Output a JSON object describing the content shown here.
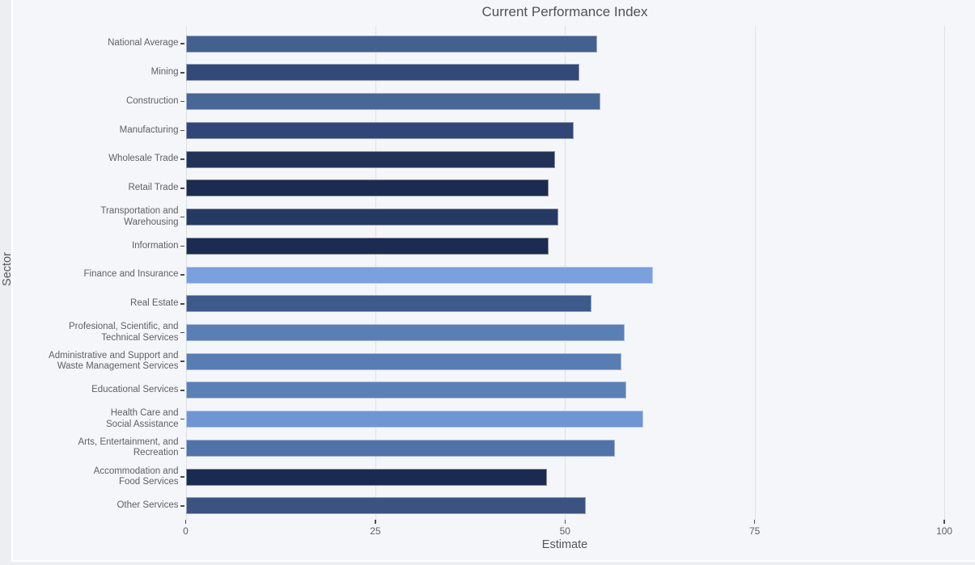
{
  "page": {
    "background": "#eceef1",
    "card_background": "#f5f6f9",
    "gridline_color": "#dce2e7",
    "tick_color": "#4a4f54",
    "label_color": "#5c6167",
    "title_color": "#4e5256"
  },
  "chart_data": {
    "type": "bar",
    "orientation": "horizontal",
    "title": "Current Performance Index",
    "xlabel": "Estimate",
    "ylabel": "Sector",
    "xlim": [
      0,
      100
    ],
    "xticks": [
      0,
      25,
      50,
      75,
      100
    ],
    "grid": true,
    "legend": false,
    "categories": [
      "National Average",
      "Mining",
      "Construction",
      "Manufacturing",
      "Wholesale Trade",
      "Retail Trade",
      "Transportation and\nWarehousing",
      "Information",
      "Finance and Insurance",
      "Real Estate",
      "Profesional, Scientific, and\nTechnical Services",
      "Administrative and Support and\nWaste Management Services",
      "Educational Services",
      "Health Care and\nSocial Assistance",
      "Arts, Entertainment, and\nRecreation",
      "Accommodation and\nFood Services",
      "Other Services"
    ],
    "values": [
      54.2,
      51.9,
      54.7,
      51.1,
      48.7,
      47.8,
      49.1,
      47.8,
      61.6,
      53.5,
      57.9,
      57.4,
      58.1,
      60.3,
      56.6,
      47.6,
      52.7
    ],
    "bar_colors": [
      "#43608f",
      "#334977",
      "#476896",
      "#314677",
      "#223156",
      "#1c2b51",
      "#253a63",
      "#1c2b51",
      "#7aa0dd",
      "#3d5a8a",
      "#5a7fb5",
      "#587db3",
      "#5a80b6",
      "#6f96d3",
      "#5273a9",
      "#1b2a50",
      "#3b5380"
    ]
  }
}
